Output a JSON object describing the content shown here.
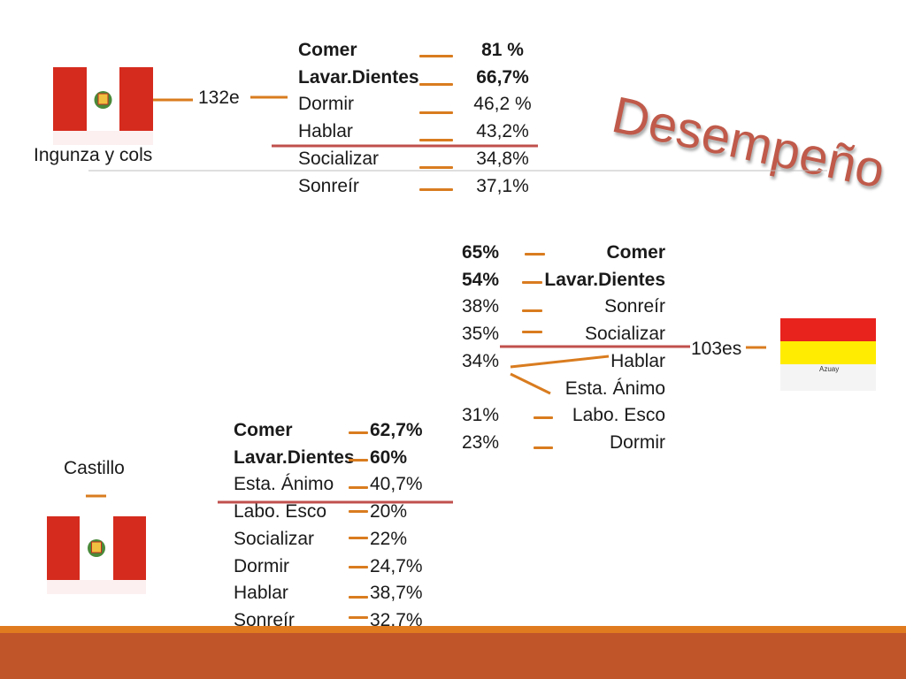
{
  "title": "Desempeño",
  "colors": {
    "accent_orange": "#d97c1f",
    "divider_red": "#c0504d",
    "title_red": "#c05a4a",
    "footer_brown": "#c0552a",
    "footer_orange": "#e07b1f",
    "peru_red": "#d52b1e",
    "azuay_red": "#e8231e",
    "azuay_yellow": "#ffec00"
  },
  "study1": {
    "author": "Ingunza y cols",
    "sample": "132e",
    "flag": "peru-flag-icon",
    "items": [
      {
        "label": "Comer",
        "value": "81 %",
        "bold": true
      },
      {
        "label": "Lavar.Dientes",
        "value": "66,7%",
        "bold": true
      },
      {
        "label": "Dormir",
        "value": "46,2 %",
        "bold": false
      },
      {
        "label": "Hablar",
        "value": "43,2%",
        "bold": false
      },
      {
        "label": "Socializar",
        "value": "34,8%",
        "bold": false
      },
      {
        "label": "Sonreír",
        "value": "37,1%",
        "bold": false
      }
    ]
  },
  "study2": {
    "sample": "103es",
    "flag": "azuay-flag-icon",
    "flag_caption": "Azuay",
    "values": [
      "65%",
      "54%",
      "38%",
      "35%",
      "34%",
      "",
      "31%",
      "23%"
    ],
    "labels": [
      "Comer",
      "Lavar.Dientes",
      "Sonreír",
      "Socializar",
      "Hablar",
      "Esta. Ánimo",
      "Labo. Esco",
      "Dormir"
    ],
    "bold_rows": [
      0,
      1
    ]
  },
  "study3": {
    "author": "Castillo",
    "flag": "peru-flag-icon",
    "items": [
      {
        "label": "Comer",
        "value": "62,7%",
        "bold": true
      },
      {
        "label": "Lavar.Dientes",
        "value": "60%",
        "bold": true
      },
      {
        "label": "Esta. Ánimo",
        "value": "40,7%",
        "bold": false
      },
      {
        "label": "Labo. Esco",
        "value": "20%",
        "bold": false
      },
      {
        "label": "Socializar",
        "value": "22%",
        "bold": false
      },
      {
        "label": "Dormir",
        "value": "24,7%",
        "bold": false
      },
      {
        "label": "Hablar",
        "value": "38,7%",
        "bold": false
      },
      {
        "label": "Sonreír",
        "value": "32,7%",
        "bold": false
      }
    ]
  }
}
